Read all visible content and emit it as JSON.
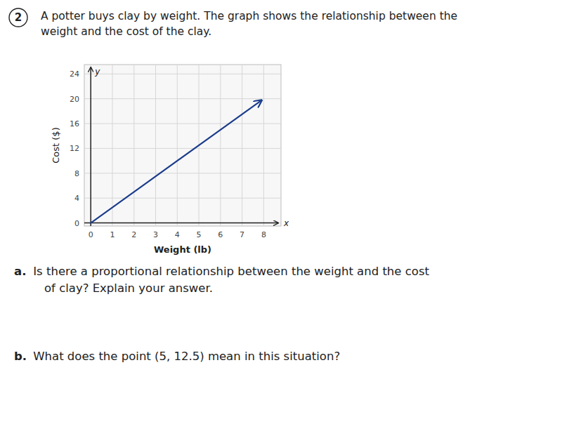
{
  "chart_data": {
    "type": "line",
    "title": [
      "A potter buys clay by weight. The graph shows the relationship between the",
      "weight and the cost of the clay."
    ],
    "xlabel": "Weight (lb)",
    "ylabel": "Cost ($)",
    "x": [
      0,
      7.9
    ],
    "values": [
      0,
      19.75
    ],
    "color": "#1c3d8c",
    "xlim": [
      -0.3,
      8.8
    ],
    "ylim": [
      -0.5,
      25.5
    ],
    "xticks": [
      0,
      1,
      2,
      3,
      4,
      5,
      6,
      7,
      8
    ],
    "yticks": [
      0,
      4,
      8,
      12,
      16,
      20,
      24
    ],
    "grid": true,
    "annotations": [
      "2",
      "y",
      "x",
      "a.",
      " Is there a proportional relationship between the weight and the cost",
      "    of clay? Explain your answer.",
      "b.",
      " What does the point (5, 12.5) mean in this situation?"
    ]
  }
}
